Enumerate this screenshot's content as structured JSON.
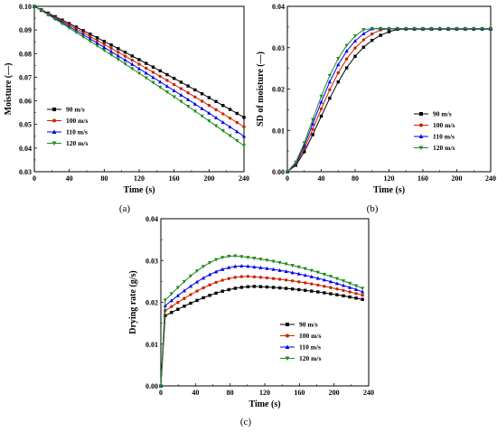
{
  "chart_data": [
    {
      "type": "line",
      "panel_label": "(a)",
      "xlabel": "Time (s)",
      "ylabel": "Moisture (—)",
      "xlim": [
        0,
        240
      ],
      "ylim": [
        0.03,
        0.1
      ],
      "xticks": [
        0,
        40,
        80,
        120,
        160,
        200,
        240
      ],
      "yticks": [
        0.03,
        0.04,
        0.05,
        0.06,
        0.07,
        0.08,
        0.09,
        0.1
      ],
      "ytick_labels": [
        "0.03",
        "0.04",
        "0.05",
        "0.06",
        "0.07",
        "0.08",
        "0.09",
        "0.10"
      ],
      "legend_placement": "lower-left",
      "series": [
        {
          "name": "90 m/s",
          "color": "#000000",
          "marker": "square",
          "start": 0.1,
          "end": 0.053
        },
        {
          "name": "100 m/s",
          "color": "#cc2200",
          "marker": "circle",
          "start": 0.1,
          "end": 0.049
        },
        {
          "name": "110 m/s",
          "color": "#0000ee",
          "marker": "triangle-up",
          "start": 0.1,
          "end": 0.045
        },
        {
          "name": "120 m/s",
          "color": "#1f8a1f",
          "marker": "triangle-down",
          "start": 0.1,
          "end": 0.041
        }
      ]
    },
    {
      "type": "line",
      "panel_label": "(b)",
      "xlabel": "Time (s)",
      "ylabel": "SD of moisture (—)",
      "xlim": [
        0,
        240
      ],
      "ylim": [
        0,
        0.04
      ],
      "xticks": [
        0,
        40,
        80,
        120,
        160,
        200,
        240
      ],
      "yticks": [
        0,
        0.01,
        0.02,
        0.03,
        0.04
      ],
      "ytick_labels": [
        "0.00",
        "0.01",
        "0.02",
        "0.03",
        "0.04"
      ],
      "legend_placement": "lower-right",
      "series": [
        {
          "name": "90 m/s",
          "color": "#000000",
          "marker": "square",
          "plateau": 0.0355,
          "scale": 62
        },
        {
          "name": "100 m/s",
          "color": "#cc2200",
          "marker": "circle",
          "plateau": 0.036,
          "scale": 57
        },
        {
          "name": "110 m/s",
          "color": "#0000ee",
          "marker": "triangle-up",
          "plateau": 0.0365,
          "scale": 53
        },
        {
          "name": "120 m/s",
          "color": "#1f8a1f",
          "marker": "triangle-down",
          "plateau": 0.0368,
          "scale": 50
        }
      ]
    },
    {
      "type": "line",
      "panel_label": "(c)",
      "xlabel": "Time (s)",
      "ylabel": "Drying rate (g/s)",
      "xlim": [
        0,
        240
      ],
      "ylim": [
        0,
        0.04
      ],
      "xticks": [
        0,
        40,
        80,
        120,
        160,
        200,
        240
      ],
      "yticks": [
        0,
        0.01,
        0.02,
        0.03,
        0.04
      ],
      "ytick_labels": [
        "0.00",
        "0.01",
        "0.02",
        "0.03",
        "0.04"
      ],
      "legend_placement": "lower-right",
      "series": [
        {
          "name": "90 m/s",
          "color": "#000000",
          "marker": "square",
          "first": 0.0168,
          "peak": 0.0238,
          "peak_t": 110,
          "end": 0.0204
        },
        {
          "name": "100 m/s",
          "color": "#cc2200",
          "marker": "circle",
          "first": 0.018,
          "peak": 0.0262,
          "peak_t": 100,
          "end": 0.0213
        },
        {
          "name": "110 m/s",
          "color": "#0000ee",
          "marker": "triangle-up",
          "first": 0.0192,
          "peak": 0.0287,
          "peak_t": 95,
          "end": 0.022
        },
        {
          "name": "120 m/s",
          "color": "#1f8a1f",
          "marker": "triangle-down",
          "first": 0.0205,
          "peak": 0.0311,
          "peak_t": 85,
          "end": 0.0227
        }
      ]
    }
  ]
}
